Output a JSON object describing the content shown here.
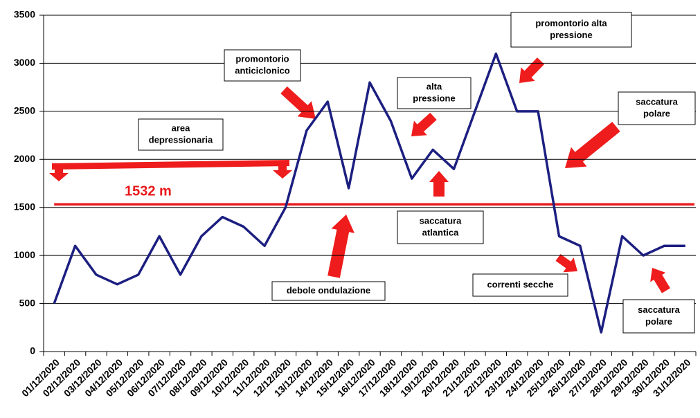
{
  "chart_data": {
    "type": "line",
    "categories": [
      "01/12/2020",
      "02/12/2020",
      "03/12/2020",
      "04/12/2020",
      "05/12/2020",
      "06/12/2020",
      "07/12/2020",
      "08/12/2020",
      "09/12/2020",
      "10/12/2020",
      "11/12/2020",
      "12/12/2020",
      "13/12/2020",
      "14/12/2020",
      "15/12/2020",
      "16/12/2020",
      "17/12/2020",
      "18/12/2020",
      "19/12/2020",
      "20/12/2020",
      "21/12/2020",
      "22/12/2020",
      "23/12/2020",
      "24/12/2020",
      "25/12/2020",
      "26/12/2020",
      "27/12/2020",
      "28/12/2020",
      "29/12/2020",
      "30/12/2020",
      "31/12/2020"
    ],
    "values": [
      500,
      1100,
      800,
      700,
      800,
      1200,
      800,
      1200,
      1400,
      1300,
      1100,
      1500,
      2300,
      2600,
      1700,
      2800,
      2400,
      1800,
      2100,
      1900,
      2500,
      3100,
      2500,
      2500,
      1200,
      1100,
      200,
      1200,
      1000,
      1100,
      1100
    ],
    "color": "#1c1f80",
    "ylim": [
      0,
      3500
    ],
    "yticks": [
      0,
      500,
      1000,
      1500,
      2000,
      2500,
      3000,
      3500
    ],
    "grid": true,
    "reference_line": {
      "value": 1532,
      "value_label": "1532 m",
      "color": "#e8191c"
    },
    "annotations": [
      {
        "lines": [
          "area",
          "depressionaria"
        ]
      },
      {
        "lines": [
          "promontorio",
          "anticiclonico"
        ]
      },
      {
        "lines": [
          "alta",
          "pressione"
        ]
      },
      {
        "lines": [
          "promontorio alta",
          "pressione"
        ]
      },
      {
        "lines": [
          "saccatura",
          "polare"
        ]
      },
      {
        "lines": [
          "saccatura",
          "atlantica"
        ]
      },
      {
        "lines": [
          "debole ondulazione"
        ]
      },
      {
        "lines": [
          "correnti secche"
        ]
      },
      {
        "lines": [
          "saccatura",
          "polare"
        ]
      }
    ]
  }
}
